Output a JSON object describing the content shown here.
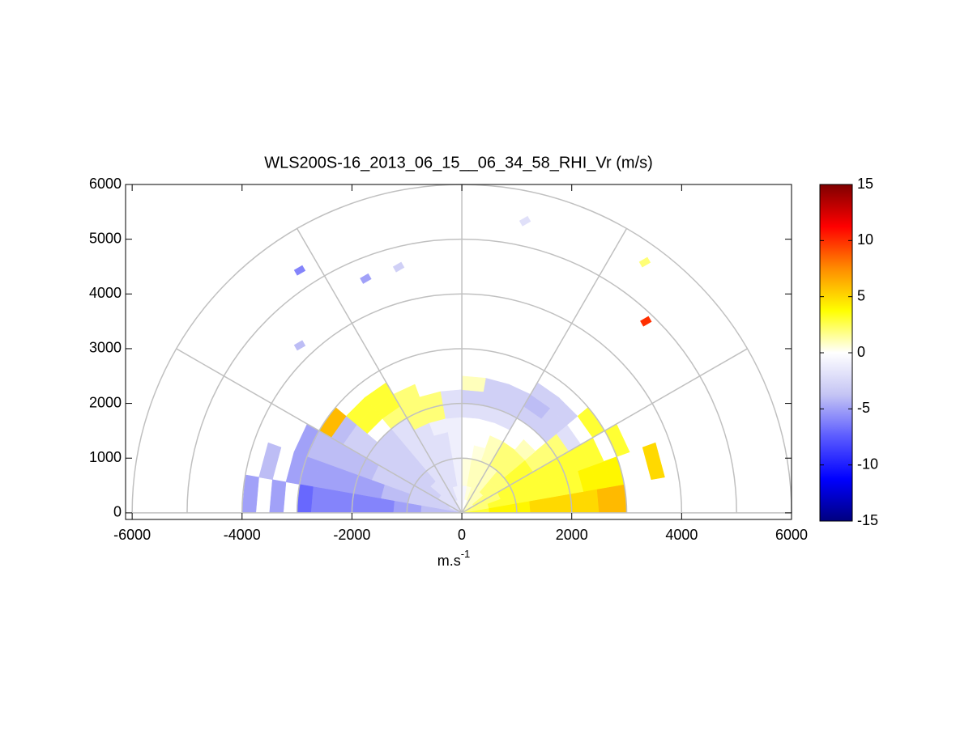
{
  "chart_data": {
    "type": "polar-heatmap",
    "title": "WLS200S-16_2013_06_15__06_34_58_RHI_Vr (m/s)",
    "xlabel": "m.s",
    "xlabel_exponent": "-1",
    "xlim": [
      -6120,
      6000
    ],
    "ylim": [
      -120,
      6000
    ],
    "xticks": [
      -6000,
      -4000,
      -2000,
      0,
      2000,
      4000,
      6000
    ],
    "yticks": [
      0,
      1000,
      2000,
      3000,
      4000,
      5000,
      6000
    ],
    "rings": [
      1000,
      2000,
      3000,
      4000,
      5000,
      6000
    ],
    "spokes": [
      0,
      30,
      60,
      90,
      120,
      150,
      180
    ],
    "grid_color": "#c0c0c0",
    "clim": [
      -15,
      15
    ],
    "cticks": [
      -15,
      -10,
      -5,
      0,
      5,
      10,
      15
    ],
    "colormap": [
      "#00007f",
      "#0000ff",
      "#5a5aff",
      "#c4c4f4",
      "#ffffff",
      "#ffff00",
      "#ff8c00",
      "#ff0000",
      "#7f0000"
    ],
    "angles": [
      5,
      15,
      25,
      35,
      45,
      55,
      65,
      75,
      85,
      95,
      105,
      115,
      125,
      135,
      145,
      155,
      165,
      175
    ],
    "ranges": [
      125,
      375,
      625,
      875,
      1125,
      1375,
      1625,
      1875,
      2125,
      2375,
      2625,
      2875,
      3125,
      3375,
      3625,
      3875
    ],
    "values": [
      [
        3,
        3,
        4,
        4,
        4,
        5,
        5,
        5,
        5,
        5,
        6,
        6,
        null,
        null,
        null,
        null
      ],
      [
        2,
        2,
        3,
        3,
        3,
        3,
        3,
        3,
        3,
        4,
        4,
        4,
        null,
        null,
        5,
        null
      ],
      [
        2,
        2,
        2,
        3,
        3,
        3,
        3,
        3,
        3,
        3,
        3,
        null,
        3,
        null,
        null,
        null
      ],
      [
        1,
        2,
        2,
        2,
        3,
        3,
        2,
        2,
        2,
        -2,
        null,
        3,
        null,
        null,
        null,
        null
      ],
      [
        1,
        1,
        2,
        2,
        2,
        2,
        1,
        null,
        -3,
        -3,
        -3,
        null,
        null,
        null,
        null,
        null
      ],
      [
        1,
        1,
        1,
        1,
        2,
        2,
        null,
        null,
        -3,
        -4,
        -3,
        null,
        null,
        null,
        null,
        null
      ],
      [
        0.5,
        1,
        1,
        1,
        1,
        1,
        null,
        -2,
        -3,
        -3,
        null,
        null,
        null,
        null,
        null,
        null
      ],
      [
        0,
        0.5,
        1,
        1,
        0.5,
        null,
        null,
        -2,
        -3,
        -3,
        null,
        null,
        null,
        null,
        null,
        null
      ],
      [
        -0.5,
        -0.5,
        0.5,
        0.5,
        0,
        null,
        null,
        -2,
        -3,
        1,
        null,
        null,
        null,
        null,
        null,
        null
      ],
      [
        -1,
        -1,
        -1,
        -1,
        -1,
        -1,
        -1,
        -2,
        -2,
        null,
        null,
        null,
        null,
        null,
        null,
        null
      ],
      [
        -1,
        -1,
        -2,
        -2,
        -2,
        -2,
        -1,
        2,
        2,
        null,
        null,
        null,
        null,
        null,
        null,
        null
      ],
      [
        -1,
        -2,
        -2,
        -2,
        -2,
        -2,
        -2,
        2,
        2,
        2,
        null,
        null,
        null,
        null,
        null,
        null
      ],
      [
        -2,
        -2,
        -2,
        -2,
        -2,
        -2,
        -2,
        -2,
        2,
        3,
        3,
        null,
        null,
        null,
        null,
        null
      ],
      [
        -2,
        -2,
        -2,
        -3,
        -3,
        -3,
        -3,
        -3,
        null,
        3,
        3,
        null,
        null,
        null,
        null,
        null
      ],
      [
        -2,
        -2,
        -3,
        -3,
        -3,
        -3,
        -3,
        -3,
        -3,
        -3,
        -4,
        6,
        null,
        null,
        null,
        null
      ],
      [
        -2,
        -3,
        -3,
        -3,
        -3,
        -3,
        -3,
        -4,
        -4,
        -4,
        -4,
        -4,
        -5,
        null,
        null,
        null
      ],
      [
        -3,
        -3,
        -3,
        -3,
        -4,
        -4,
        -5,
        -5,
        -5,
        -5,
        -5,
        -5,
        -5,
        null,
        -4,
        null
      ],
      [
        -4,
        -4,
        -4,
        -5,
        -5,
        -6,
        -6,
        -6,
        -6,
        -6,
        -6,
        -7,
        null,
        -5,
        null,
        -5
      ]
    ],
    "points": {
      "x": [
        -2950,
        -1750,
        -1150,
        -2950,
        1150,
        3330,
        3350
      ],
      "y": [
        4430,
        4280,
        4490,
        3060,
        5330,
        4580,
        3500
      ],
      "values": [
        -6,
        -5,
        -3,
        -4,
        -2,
        2,
        10
      ]
    }
  }
}
